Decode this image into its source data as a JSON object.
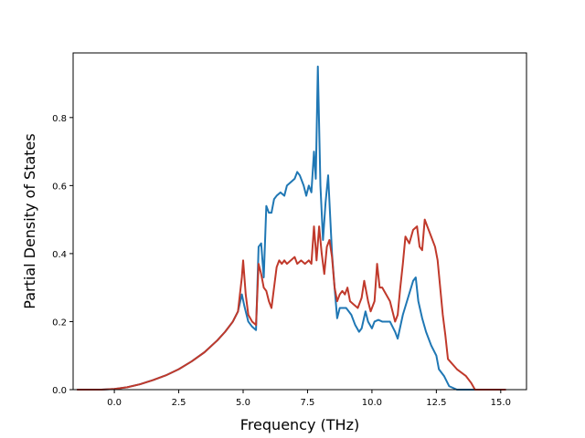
{
  "chart_data": {
    "type": "line",
    "title": "",
    "xlabel": "Frequency (THz)",
    "ylabel": "Partial Density of States",
    "xlim": [
      -1.6,
      16.0
    ],
    "ylim": [
      0.0,
      0.99
    ],
    "xticks": [
      0.0,
      2.5,
      5.0,
      7.5,
      10.0,
      12.5,
      15.0
    ],
    "xtick_labels": [
      "0.0",
      "2.5",
      "5.0",
      "7.5",
      "10.0",
      "12.5",
      "15.0"
    ],
    "yticks": [
      0.0,
      0.2,
      0.4,
      0.6,
      0.8
    ],
    "ytick_labels": [
      "0.0",
      "0.2",
      "0.4",
      "0.6",
      "0.8"
    ],
    "grid": false,
    "legend": "none",
    "series": [
      {
        "color": "#1f77b4",
        "x": [
          -1.45,
          -0.5,
          0.0,
          0.5,
          1.0,
          1.5,
          2.0,
          2.5,
          3.0,
          3.5,
          4.0,
          4.3,
          4.6,
          4.8,
          4.95,
          5.05,
          5.2,
          5.35,
          5.5,
          5.6,
          5.7,
          5.8,
          5.9,
          6.0,
          6.1,
          6.2,
          6.3,
          6.45,
          6.6,
          6.7,
          6.85,
          7.0,
          7.1,
          7.2,
          7.35,
          7.45,
          7.55,
          7.65,
          7.75,
          7.82,
          7.9,
          8.0,
          8.1,
          8.2,
          8.3,
          8.45,
          8.55,
          8.65,
          8.75,
          8.9,
          9.0,
          9.2,
          9.35,
          9.5,
          9.6,
          9.75,
          9.85,
          10.0,
          10.1,
          10.25,
          10.4,
          10.5,
          10.6,
          10.7,
          10.9,
          11.0,
          11.2,
          11.4,
          11.6,
          11.7,
          11.8,
          11.95,
          12.1,
          12.3,
          12.5,
          12.6,
          12.8,
          13.0,
          13.3,
          13.8,
          15.2
        ],
        "y": [
          0.0,
          0.0,
          0.002,
          0.007,
          0.016,
          0.028,
          0.042,
          0.06,
          0.083,
          0.11,
          0.145,
          0.17,
          0.2,
          0.23,
          0.28,
          0.245,
          0.2,
          0.185,
          0.175,
          0.42,
          0.43,
          0.33,
          0.54,
          0.52,
          0.52,
          0.56,
          0.57,
          0.58,
          0.57,
          0.6,
          0.61,
          0.62,
          0.64,
          0.63,
          0.6,
          0.57,
          0.6,
          0.58,
          0.7,
          0.62,
          0.95,
          0.6,
          0.44,
          0.55,
          0.63,
          0.4,
          0.3,
          0.21,
          0.24,
          0.24,
          0.24,
          0.22,
          0.19,
          0.17,
          0.18,
          0.23,
          0.2,
          0.18,
          0.2,
          0.205,
          0.2,
          0.2,
          0.2,
          0.2,
          0.17,
          0.15,
          0.22,
          0.27,
          0.32,
          0.33,
          0.26,
          0.21,
          0.17,
          0.13,
          0.1,
          0.06,
          0.04,
          0.01,
          0.0,
          0.0,
          0.0
        ]
      },
      {
        "color": "#c0392b",
        "x": [
          -1.45,
          -0.5,
          0.0,
          0.5,
          1.0,
          1.5,
          2.0,
          2.5,
          3.0,
          3.5,
          4.0,
          4.3,
          4.6,
          4.8,
          4.95,
          5.0,
          5.1,
          5.2,
          5.35,
          5.5,
          5.6,
          5.7,
          5.8,
          5.9,
          6.0,
          6.1,
          6.2,
          6.3,
          6.4,
          6.5,
          6.6,
          6.7,
          6.85,
          7.0,
          7.1,
          7.25,
          7.4,
          7.55,
          7.65,
          7.75,
          7.85,
          7.95,
          8.05,
          8.15,
          8.25,
          8.35,
          8.45,
          8.55,
          8.65,
          8.75,
          8.85,
          8.95,
          9.05,
          9.15,
          9.3,
          9.45,
          9.6,
          9.7,
          9.85,
          9.95,
          10.1,
          10.2,
          10.3,
          10.4,
          10.55,
          10.7,
          10.9,
          11.0,
          11.1,
          11.2,
          11.3,
          11.45,
          11.6,
          11.75,
          11.85,
          11.95,
          12.05,
          12.15,
          12.3,
          12.45,
          12.55,
          12.65,
          12.75,
          12.85,
          12.95,
          13.3,
          13.65,
          13.85,
          14.0,
          15.2
        ],
        "y": [
          0.0,
          0.0,
          0.002,
          0.007,
          0.016,
          0.028,
          0.042,
          0.06,
          0.083,
          0.11,
          0.145,
          0.17,
          0.2,
          0.23,
          0.33,
          0.38,
          0.28,
          0.22,
          0.2,
          0.19,
          0.37,
          0.34,
          0.3,
          0.29,
          0.26,
          0.24,
          0.3,
          0.36,
          0.38,
          0.37,
          0.38,
          0.37,
          0.38,
          0.39,
          0.37,
          0.38,
          0.37,
          0.38,
          0.37,
          0.48,
          0.38,
          0.48,
          0.4,
          0.34,
          0.42,
          0.44,
          0.39,
          0.3,
          0.26,
          0.28,
          0.29,
          0.28,
          0.3,
          0.26,
          0.25,
          0.24,
          0.27,
          0.32,
          0.26,
          0.23,
          0.26,
          0.37,
          0.3,
          0.3,
          0.28,
          0.26,
          0.2,
          0.22,
          0.3,
          0.37,
          0.45,
          0.43,
          0.47,
          0.48,
          0.42,
          0.41,
          0.5,
          0.48,
          0.45,
          0.42,
          0.38,
          0.3,
          0.22,
          0.16,
          0.09,
          0.06,
          0.04,
          0.02,
          0.0,
          0.0
        ]
      }
    ]
  }
}
